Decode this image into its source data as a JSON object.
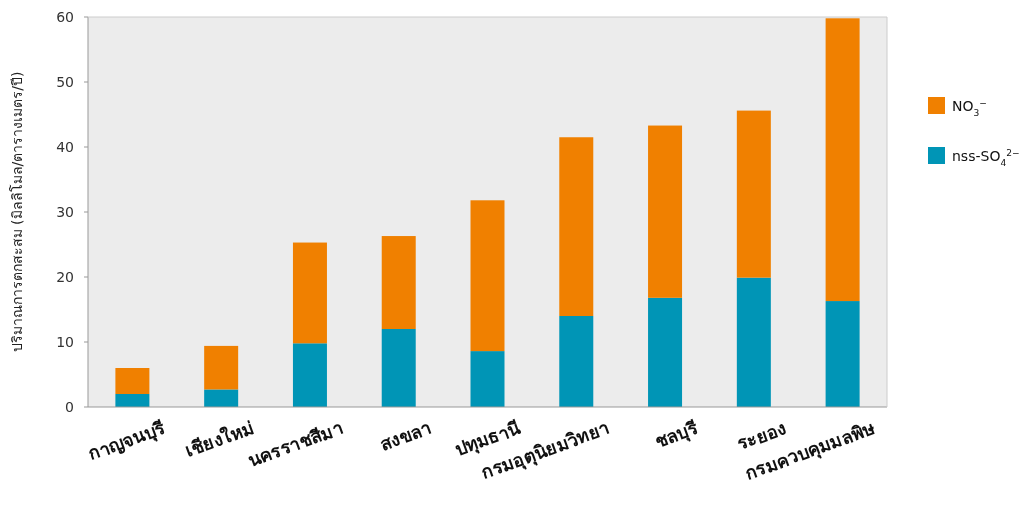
{
  "chart_data": {
    "type": "bar",
    "stacked": true,
    "ylabel": "ปริมาณการตกสะสม (มิลลิโมล/ตารางเมตร/ปี)",
    "categories": [
      "กาญจนบุรี",
      "เชียงใหม่",
      "นครราชสีมา",
      "สงขลา",
      "ปทุมธานี",
      "กรมอุตุนิยมวิทยา",
      "ชลบุรี",
      "ระยอง",
      "กรมควบคุมมลพิษ"
    ],
    "series": [
      {
        "name": "nss-SO$_{4}$$^{2−}$",
        "color": "#0095b6",
        "values": [
          2.0,
          2.7,
          9.8,
          12.0,
          8.6,
          14.0,
          16.8,
          19.9,
          16.3
        ]
      },
      {
        "name": "NO$_{3}$$^{−}$",
        "color": "#f08000",
        "values": [
          4.0,
          6.7,
          15.5,
          14.3,
          23.2,
          27.5,
          26.5,
          25.7,
          43.5
        ]
      }
    ],
    "ylim": [
      0,
      60
    ],
    "yticks": [
      0,
      10,
      20,
      30,
      40,
      50,
      60
    ],
    "grid": false,
    "legend": "right"
  }
}
